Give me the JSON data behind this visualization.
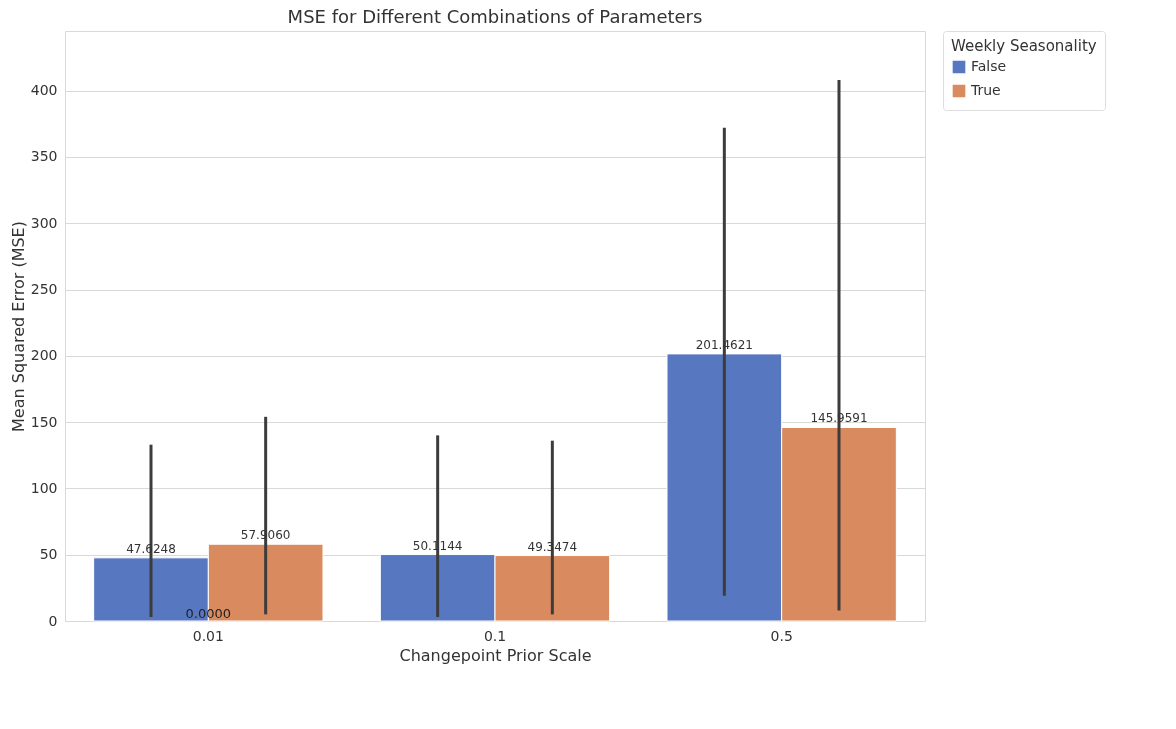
{
  "chart_data": {
    "type": "bar",
    "title": "MSE for Different Combinations of Parameters",
    "xlabel": "Changepoint Prior Scale",
    "ylabel": "Mean Squared Error (MSE)",
    "legend_title": "Weekly Seasonality",
    "categories": [
      "0.01",
      "0.1",
      "0.5"
    ],
    "series": [
      {
        "name": "False",
        "color": "#5778c0",
        "values": [
          47.6248,
          50.1144,
          201.4621
        ],
        "value_labels": [
          "47.6248",
          "50.1144",
          "201.4621"
        ],
        "errors": [
          [
            3,
            133
          ],
          [
            3,
            140
          ],
          [
            19,
            372
          ]
        ]
      },
      {
        "name": "True",
        "color": "#d98b5f",
        "values": [
          57.906,
          49.3474,
          145.9591
        ],
        "value_labels": [
          "57.9060",
          "49.3474",
          "145.9591"
        ],
        "errors": [
          [
            5,
            154
          ],
          [
            5,
            136
          ],
          [
            8,
            408
          ]
        ]
      }
    ],
    "annotations": [
      {
        "text": "0.0000",
        "x": "0.01",
        "y": 0
      }
    ],
    "ylim": [
      0,
      445
    ],
    "yticks": [
      0,
      50,
      100,
      150,
      200,
      250,
      300,
      350,
      400
    ],
    "grid": "y",
    "legend": "top right"
  }
}
